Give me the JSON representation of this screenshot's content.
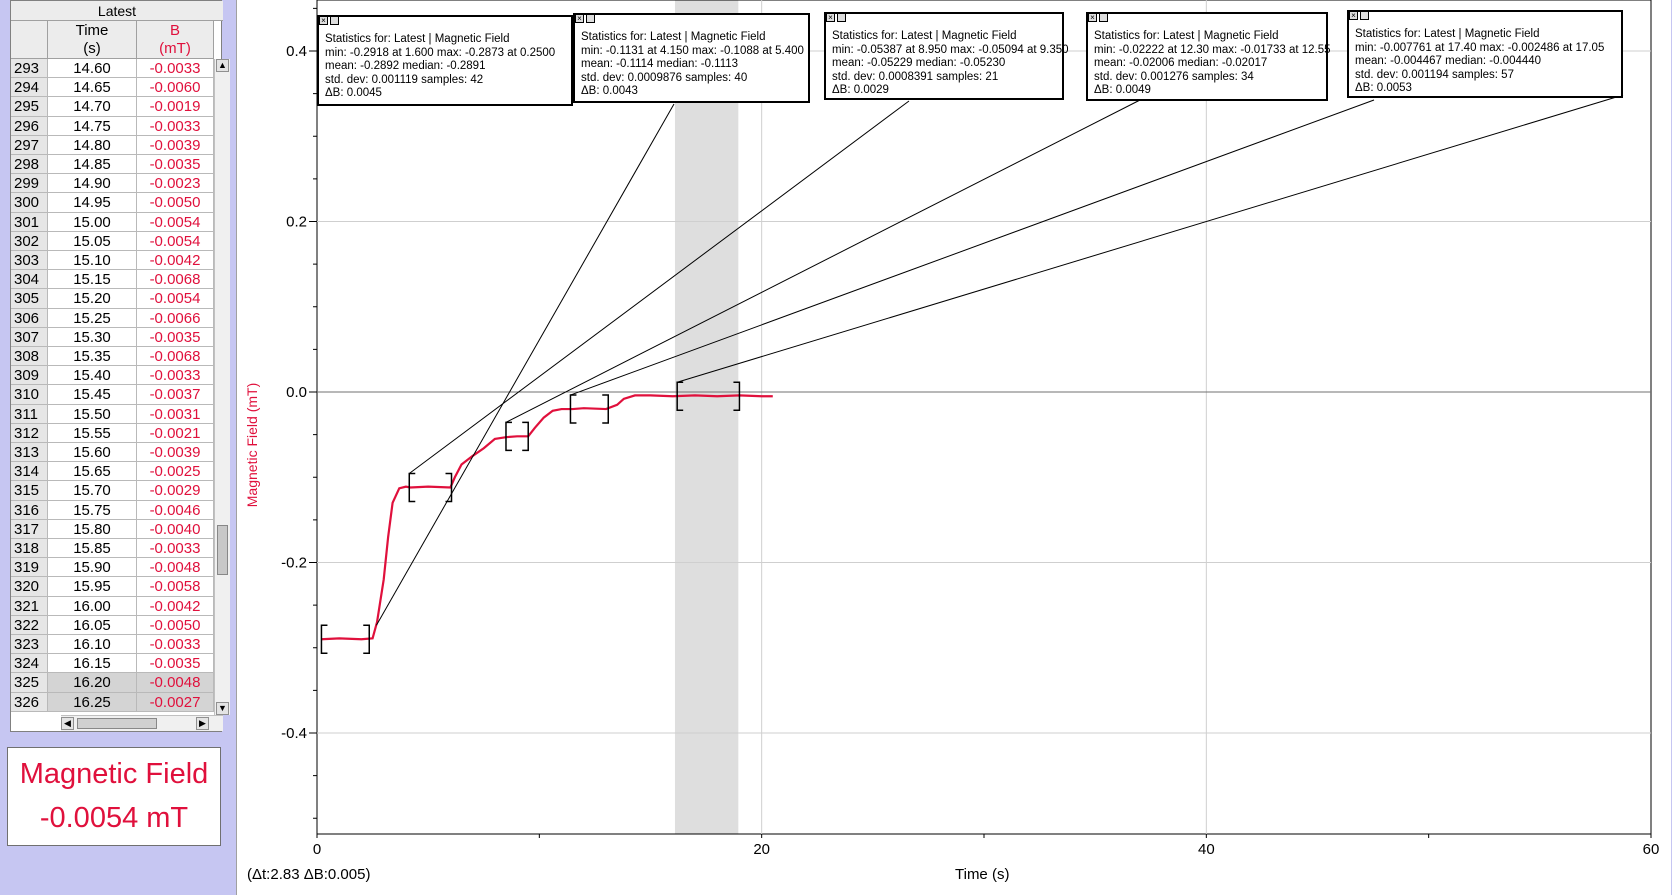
{
  "table": {
    "group_header": "Latest",
    "columns": [
      {
        "name": "",
        "unit": ""
      },
      {
        "name": "Time",
        "unit": "(s)"
      },
      {
        "name": "B",
        "unit": "(mT)"
      }
    ],
    "rows": [
      [
        "293",
        "14.60",
        "-0.0033"
      ],
      [
        "294",
        "14.65",
        "-0.0060"
      ],
      [
        "295",
        "14.70",
        "-0.0019"
      ],
      [
        "296",
        "14.75",
        "-0.0033"
      ],
      [
        "297",
        "14.80",
        "-0.0039"
      ],
      [
        "298",
        "14.85",
        "-0.0035"
      ],
      [
        "299",
        "14.90",
        "-0.0023"
      ],
      [
        "300",
        "14.95",
        "-0.0050"
      ],
      [
        "301",
        "15.00",
        "-0.0054"
      ],
      [
        "302",
        "15.05",
        "-0.0054"
      ],
      [
        "303",
        "15.10",
        "-0.0042"
      ],
      [
        "304",
        "15.15",
        "-0.0068"
      ],
      [
        "305",
        "15.20",
        "-0.0054"
      ],
      [
        "306",
        "15.25",
        "-0.0066"
      ],
      [
        "307",
        "15.30",
        "-0.0035"
      ],
      [
        "308",
        "15.35",
        "-0.0068"
      ],
      [
        "309",
        "15.40",
        "-0.0033"
      ],
      [
        "310",
        "15.45",
        "-0.0037"
      ],
      [
        "311",
        "15.50",
        "-0.0031"
      ],
      [
        "312",
        "15.55",
        "-0.0021"
      ],
      [
        "313",
        "15.60",
        "-0.0039"
      ],
      [
        "314",
        "15.65",
        "-0.0025"
      ],
      [
        "315",
        "15.70",
        "-0.0029"
      ],
      [
        "316",
        "15.75",
        "-0.0046"
      ],
      [
        "317",
        "15.80",
        "-0.0040"
      ],
      [
        "318",
        "15.85",
        "-0.0033"
      ],
      [
        "319",
        "15.90",
        "-0.0048"
      ],
      [
        "320",
        "15.95",
        "-0.0058"
      ],
      [
        "321",
        "16.00",
        "-0.0042"
      ],
      [
        "322",
        "16.05",
        "-0.0050"
      ],
      [
        "323",
        "16.10",
        "-0.0033"
      ],
      [
        "324",
        "16.15",
        "-0.0035"
      ],
      [
        "325",
        "16.20",
        "-0.0048"
      ],
      [
        "326",
        "16.25",
        "-0.0027"
      ]
    ],
    "selected_rows": [
      "325",
      "326"
    ]
  },
  "meter": {
    "label": "Magnetic Field",
    "value": "-0.0054 mT"
  },
  "graph": {
    "ylabel": "Magnetic Field (mT)",
    "xlabel": "Time (s)",
    "delta_readout": "(Δt:2.83  ΔB:0.005)",
    "selection_highlight": [
      16.1,
      18.95
    ]
  },
  "stats_boxes": [
    {
      "title": "Statistics for: Latest | Magnetic Field",
      "line1": "min: -0.2918 at 1.600 max: -0.2873 at 0.2500",
      "line2": "mean: -0.2892 median: -0.2891",
      "line3": "std. dev: 0.001119 samples: 42",
      "delta": "ΔB: 0.0045",
      "bracket_range": [
        0.2,
        2.35
      ]
    },
    {
      "title": "Statistics for: Latest | Magnetic Field",
      "line1": "min: -0.1131 at 4.150 max: -0.1088 at 5.400",
      "line2": "mean: -0.1114 median: -0.1113",
      "line3": "std. dev: 0.0009876 samples: 40",
      "delta": "ΔB: 0.0043",
      "bracket_range": [
        4.15,
        6.05
      ]
    },
    {
      "title": "Statistics for: Latest | Magnetic Field",
      "line1": "min: -0.05387 at 8.950 max: -0.05094 at 9.350",
      "line2": "mean: -0.05229 median: -0.05230",
      "line3": "std. dev: 0.0008391 samples: 21",
      "delta": "ΔB: 0.0029",
      "bracket_range": [
        8.5,
        9.5
      ]
    },
    {
      "title": "Statistics for: Latest | Magnetic Field",
      "line1": "min: -0.02222 at 12.30 max: -0.01733 at 12.55",
      "line2": "mean: -0.02006 median: -0.02017",
      "line3": "std. dev: 0.001276 samples: 34",
      "delta": "ΔB: 0.0049",
      "bracket_range": [
        11.4,
        13.1
      ]
    },
    {
      "title": "Statistics for: Latest | Magnetic Field",
      "line1": "min: -0.007761 at 17.40 max: -0.002486 at 17.05",
      "line2": "mean: -0.004467 median: -0.004440",
      "line3": "std. dev: 0.001194 samples: 57",
      "delta": "ΔB: 0.0053",
      "bracket_range": [
        16.2,
        19.0
      ]
    }
  ],
  "chart_data": {
    "type": "line",
    "title": "",
    "xlabel": "Time (s)",
    "ylabel": "Magnetic Field (mT)",
    "xlim": [
      0,
      60
    ],
    "ylim": [
      -0.5,
      0.45
    ],
    "xticks": [
      0,
      20,
      40,
      60
    ],
    "xticks_minor": [
      10,
      30,
      50
    ],
    "yticks": [
      -0.4,
      -0.2,
      0.0,
      0.2,
      0.4
    ],
    "grid": true,
    "series": [
      {
        "color": "#e0103c",
        "x": [
          0.2,
          1.0,
          2.0,
          2.5,
          2.7,
          3.0,
          3.2,
          3.4,
          3.7,
          4.0,
          4.2,
          5.0,
          6.0,
          6.2,
          6.5,
          7.0,
          7.5,
          8.0,
          8.5,
          9.0,
          9.5,
          9.8,
          10.2,
          10.6,
          11.0,
          11.5,
          12.0,
          13.0,
          13.5,
          13.8,
          14.3,
          15.0,
          16.0,
          17.0,
          18.0,
          19.0,
          20.0,
          20.5
        ],
        "y": [
          -0.29,
          -0.289,
          -0.29,
          -0.289,
          -0.27,
          -0.22,
          -0.17,
          -0.13,
          -0.113,
          -0.111,
          -0.112,
          -0.111,
          -0.112,
          -0.1,
          -0.085,
          -0.075,
          -0.066,
          -0.055,
          -0.053,
          -0.052,
          -0.052,
          -0.042,
          -0.03,
          -0.022,
          -0.02,
          -0.02,
          -0.019,
          -0.02,
          -0.015,
          -0.008,
          -0.004,
          -0.004,
          -0.005,
          -0.004,
          -0.005,
          -0.004,
          -0.005,
          -0.005
        ]
      }
    ]
  }
}
